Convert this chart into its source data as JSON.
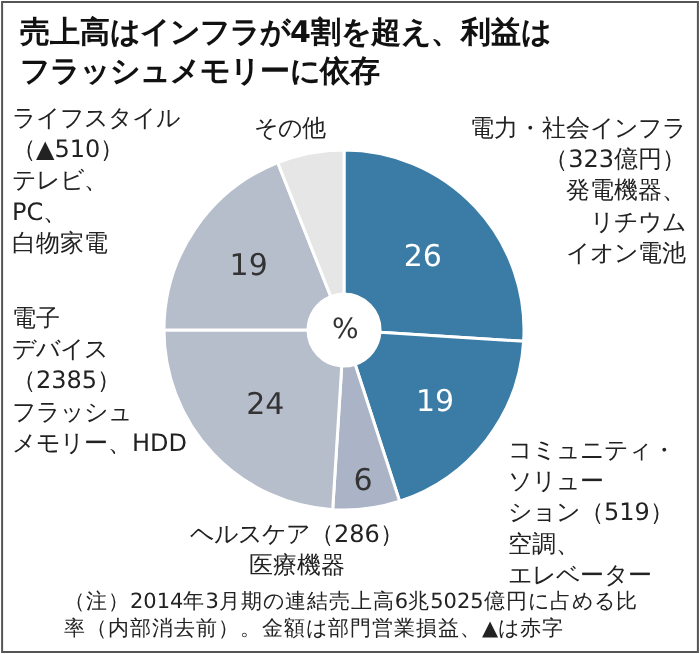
{
  "chart_data": {
    "type": "donut",
    "title": "売上高はインフラが4割を超え、利益はフラッシュメモリーに依存",
    "categories": [
      "電力・社会インフラ（323億円）発電機器、リチウムイオン電池",
      "コミュニティ・ソリューション（519）空調、エレベーター",
      "ヘルスケア（286）医療機器",
      "電子デバイス（2385）フラッシュメモリー、HDD",
      "ライフスタイル（▲510）テレビ、PC、白物家電",
      "その他"
    ],
    "values": [
      26,
      19,
      6,
      24,
      19,
      6
    ],
    "colors": [
      "#3a7ca5",
      "#3a7ca5",
      "#aab4c6",
      "#b6bdcb",
      "#b6bdcb",
      "#e6e6e6"
    ],
    "value_labels": [
      "26",
      "19",
      "6",
      "24",
      "19",
      null
    ],
    "annotations": [
      "%",
      "（注）2014年3月期の連結売上高6兆5025億円に占める比率（内部消去前）。金額は部門営業損益、▲は赤字"
    ],
    "legend": false
  }
}
